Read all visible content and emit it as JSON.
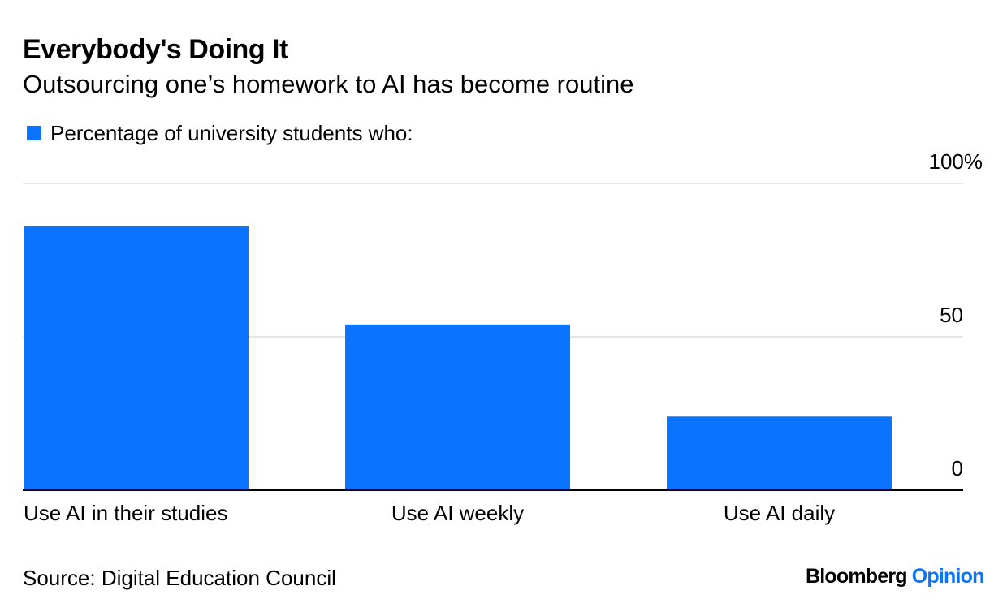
{
  "title": "Everybody's Doing It",
  "subtitle": "Outsourcing one’s homework to AI has become routine",
  "source": "Source: Digital Education Council",
  "brand": {
    "name": "Bloomberg",
    "section": "Opinion"
  },
  "colors": {
    "bar": "#0A73FF",
    "brand_name": "#000000",
    "brand_section": "#0A73FF",
    "grid": "#E5E5E5",
    "axis": "#000000"
  },
  "chart_data": {
    "type": "bar",
    "legend_placement": "top-left",
    "grid": true,
    "categories": [
      "Use AI in their studies",
      "Use AI weekly",
      "Use AI daily"
    ],
    "series": [
      {
        "name": "Percentage of university students who:",
        "values": [
          86,
          54,
          24
        ]
      }
    ],
    "ylim": [
      0,
      100
    ],
    "yticks": [
      0,
      50,
      100
    ],
    "ytick_labels": [
      "0",
      "50",
      "100%"
    ]
  }
}
